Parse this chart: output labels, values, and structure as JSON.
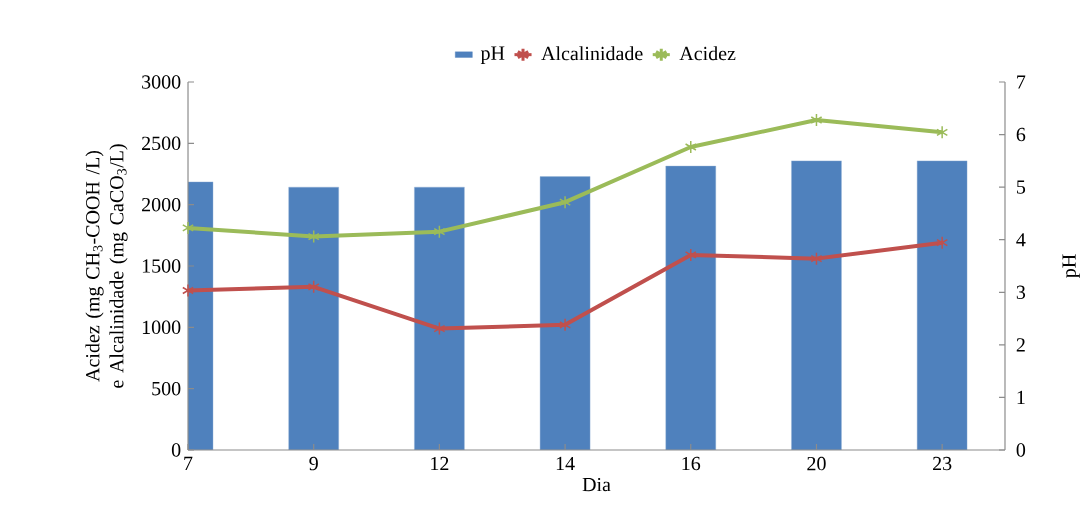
{
  "chart_data": {
    "type": "bar",
    "xlabel": "Dia",
    "ylabel": "Acidez (mg CH$_{3}$-COOH /L) e Alcalinidade (mg CaCO$_{3}$/L)",
    "y2label": "pH",
    "categories": [
      "7",
      "9",
      "12",
      "14",
      "16",
      "20",
      "23"
    ],
    "series": [
      {
        "name": "pH",
        "axis": "y2",
        "color": "#4f81bd",
        "values": [
          5.1,
          5.0,
          5.0,
          5.2,
          5.4,
          5.5,
          5.5
        ]
      },
      {
        "name": "Alcalinidade",
        "type": "line",
        "color": "#c0504d",
        "marker": "cross",
        "values": [
          1300,
          1330,
          990,
          1020,
          1590,
          1560,
          1690
        ]
      },
      {
        "name": "Acidez",
        "type": "line",
        "color": "#9bbb59",
        "marker": "cross",
        "values": [
          1810,
          1740,
          1780,
          2020,
          2470,
          2690,
          2590
        ]
      }
    ],
    "ylim": [
      0,
      3000
    ],
    "yticks": [
      0,
      500,
      1000,
      1500,
      2000,
      2500,
      3000
    ],
    "y2lim": [
      0,
      7
    ],
    "y2ticks": [
      0,
      1,
      2,
      3,
      4,
      5,
      6,
      7
    ],
    "grid": false,
    "legend": "top"
  }
}
